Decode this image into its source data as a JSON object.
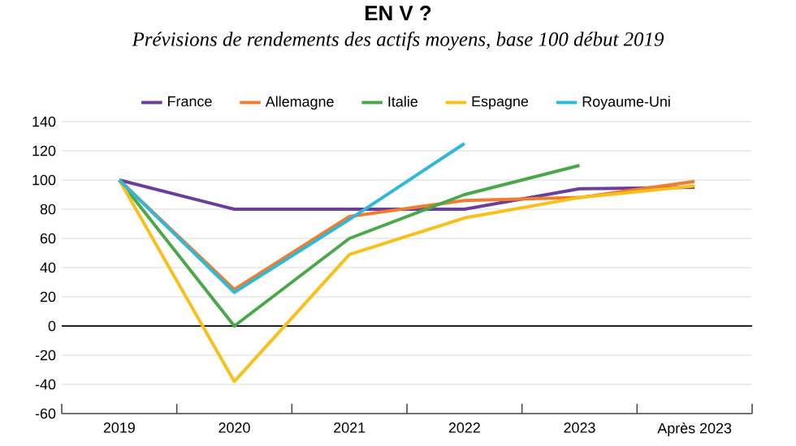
{
  "chart_data": {
    "type": "line",
    "title": "EN V ?",
    "subtitle": "Prévisions de rendements des actifs moyens, base 100 début 2019",
    "categories": [
      "2019",
      "2020",
      "2021",
      "2022",
      "2023",
      "Après 2023"
    ],
    "series": [
      {
        "name": "France",
        "color": "#6b3f98",
        "values": [
          100,
          80,
          80,
          80,
          94,
          95
        ]
      },
      {
        "name": "Allemagne",
        "color": "#ee7d31",
        "values": [
          100,
          25,
          75,
          86,
          88,
          99
        ]
      },
      {
        "name": "Italie",
        "color": "#4aa84a",
        "values": [
          100,
          0,
          60,
          90,
          110,
          null
        ]
      },
      {
        "name": "Espagne",
        "color": "#f8c01a",
        "values": [
          100,
          -38,
          49,
          74,
          88,
          96
        ]
      },
      {
        "name": "Royaume-Uni",
        "color": "#2fb8d8",
        "values": [
          100,
          23,
          73,
          125,
          null,
          null
        ]
      }
    ],
    "ylim": [
      -60,
      140
    ],
    "yticks": [
      -60,
      -40,
      -20,
      0,
      20,
      40,
      60,
      80,
      100,
      120,
      140
    ],
    "grid": "y",
    "legend": "top",
    "marker": "none",
    "line_style": "solid",
    "ref_lines": [
      {
        "axis": "y",
        "value": 0,
        "color": "#222222"
      }
    ]
  }
}
